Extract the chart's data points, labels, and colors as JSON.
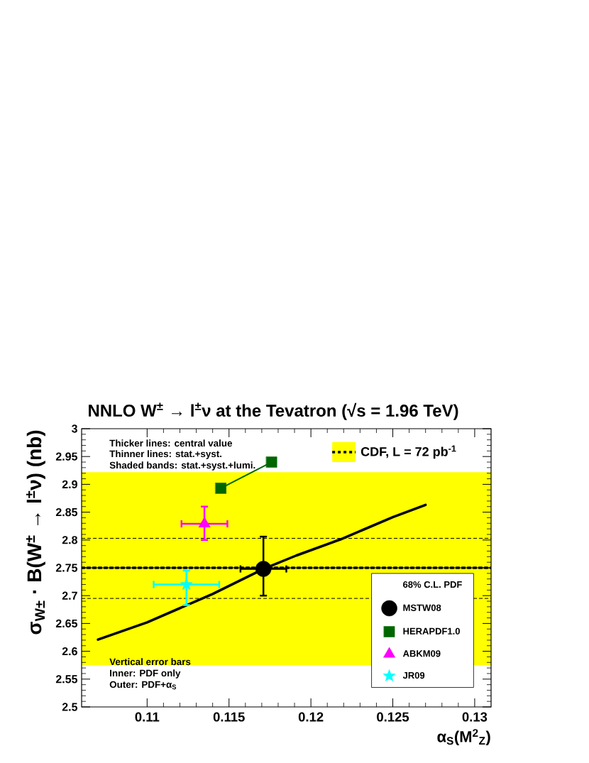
{
  "chart_data": {
    "type": "scatter",
    "title": "NNLO W$^{±}$ → l$^{±}$ν at the Tevatron (√s = 1.96 TeV)",
    "xlabel": "α$_{S}$(M$^{2}$$_{Z}$)",
    "ylabel": "σ$_{W±}$ · B(W$^{±}$ → l$^{±}$ν)  (nb)",
    "xlim": [
      0.106,
      0.131
    ],
    "xticks": [
      0.11,
      0.115,
      0.12,
      0.125,
      0.13
    ],
    "ylim": [
      2.5,
      3
    ],
    "yticks": [
      2.5,
      2.55,
      2.6,
      2.65,
      2.7,
      2.75,
      2.8,
      2.85,
      2.9,
      2.95,
      3
    ],
    "legend": "right",
    "legend_title": "68% C.L. PDF",
    "bands": [
      {
        "axis": "y",
        "from": 2.575,
        "to": 2.922,
        "color": "#ffff00"
      }
    ],
    "ref_lines": [
      {
        "axis": "y",
        "value": 2.803,
        "line_style": "dashed"
      },
      {
        "axis": "y",
        "value": 2.695,
        "line_style": "dashed"
      }
    ],
    "annotations": [
      "Thicker lines: central value",
      "Thinner lines: stat.+syst.",
      "Shaded bands: stat.+syst.+lumi.",
      "Vertical error bars",
      "Inner: PDF only",
      "Outer: PDF+α$_{S}$"
    ],
    "series": [
      {
        "name": "CDF, L = 72 pb$^{-1}$",
        "type": "line",
        "color": "#000000",
        "marker": "none",
        "line_style": "dotted",
        "x": [
          0.106,
          0.131
        ],
        "values": [
          2.75,
          2.75
        ]
      },
      {
        "type": "line",
        "color": "#000000",
        "marker": "none",
        "x": [
          0.107,
          0.11,
          0.114,
          0.1171,
          0.1191,
          0.1218,
          0.125,
          0.127
        ],
        "values": [
          2.621,
          2.652,
          2.703,
          2.748,
          2.772,
          2.801,
          2.841,
          2.863
        ]
      },
      {
        "name": "MSTW08",
        "color": "#000000",
        "marker": "circle",
        "x": [
          0.1171
        ],
        "values": [
          2.748
        ],
        "errors": [
          [
            2.7,
            2.806
          ]
        ],
        "xerrors": [
          [
            0.1157,
            0.1185
          ]
        ]
      },
      {
        "name": "HERAPDF1.0",
        "type": "line",
        "color": "#006600",
        "marker": "square",
        "x": [
          0.1145,
          0.1176
        ],
        "values": [
          2.893,
          2.94
        ]
      },
      {
        "name": "ABKM09",
        "color": "#ff00ff",
        "marker": "triangle",
        "x": [
          0.1135
        ],
        "values": [
          2.829
        ],
        "errors": [
          [
            2.8,
            2.86
          ]
        ],
        "xerrors": [
          [
            0.1121,
            0.1149
          ]
        ]
      },
      {
        "name": "JR09",
        "color": "#00ffff",
        "marker": "star",
        "x": [
          0.1124
        ],
        "values": [
          2.72
        ],
        "errors": [
          [
            2.683,
            2.745
          ]
        ],
        "xerrors": [
          [
            0.1104,
            0.1144
          ]
        ]
      }
    ]
  }
}
